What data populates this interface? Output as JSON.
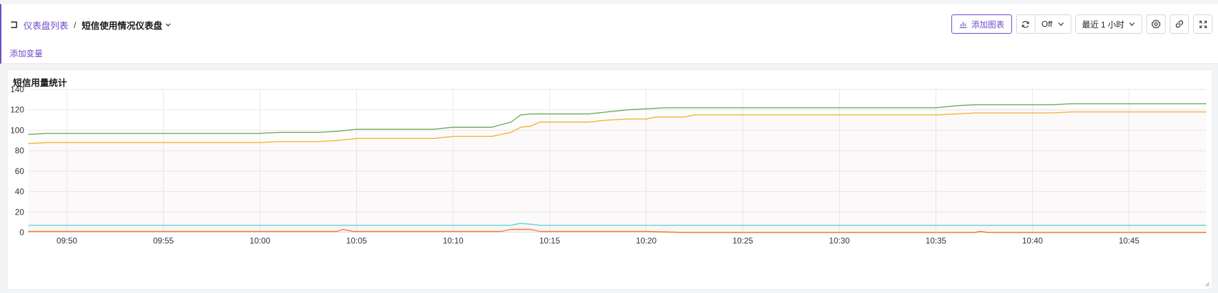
{
  "breadcrumb": {
    "parent": "仪表盘列表",
    "separator": "/",
    "current": "短信使用情况仪表盘"
  },
  "add_variable": "添加变量",
  "toolbar": {
    "add_chart": "添加图表",
    "refresh_interval": "Off",
    "time_range": "最近 1 小时"
  },
  "icons": [
    "back-icon",
    "chevron-down-icon",
    "chart-add-icon",
    "refresh-icon",
    "settings-icon",
    "link-icon",
    "fullscreen-icon"
  ],
  "colors": {
    "accent": "#6e4ac8",
    "series_green": "#6aaa5c",
    "series_yellow": "#f0b432",
    "series_cyan": "#5fd4d8",
    "series_orange": "#f07a30"
  },
  "chart_data": {
    "type": "line",
    "title": "短信用量统计",
    "x_ticks": [
      "09:50",
      "09:55",
      "10:00",
      "10:05",
      "10:10",
      "10:15",
      "10:20",
      "10:25",
      "10:30",
      "10:35",
      "10:40",
      "10:45"
    ],
    "xlim": [
      "09:48",
      "10:49"
    ],
    "ylim": [
      0,
      140
    ],
    "y_ticks": [
      0,
      20,
      40,
      60,
      80,
      100,
      120,
      140
    ],
    "grid": true,
    "area_fill": true,
    "series": [
      {
        "color": "#6aaa5c",
        "points": [
          [
            "09:48",
            96
          ],
          [
            "09:49",
            97
          ],
          [
            "10:00",
            97
          ],
          [
            "10:01",
            98
          ],
          [
            "10:03",
            98
          ],
          [
            "10:04",
            99
          ],
          [
            "10:05",
            101
          ],
          [
            "10:09",
            101
          ],
          [
            "10:10",
            103
          ],
          [
            "10:12",
            103
          ],
          [
            "10:13",
            108
          ],
          [
            "10:13.5",
            115
          ],
          [
            "10:14",
            116
          ],
          [
            "10:17",
            116
          ],
          [
            "10:18",
            118
          ],
          [
            "10:19",
            120
          ],
          [
            "10:20",
            121
          ],
          [
            "10:21",
            122
          ],
          [
            "10:24",
            122
          ],
          [
            "10:35",
            122
          ],
          [
            "10:36",
            124
          ],
          [
            "10:37",
            125
          ],
          [
            "10:41",
            125
          ],
          [
            "10:42",
            126
          ],
          [
            "10:49",
            126
          ]
        ]
      },
      {
        "color": "#f0b432",
        "points": [
          [
            "09:48",
            87
          ],
          [
            "09:49",
            88
          ],
          [
            "10:00",
            88
          ],
          [
            "10:01",
            89
          ],
          [
            "10:03",
            89
          ],
          [
            "10:04",
            90
          ],
          [
            "10:05",
            92
          ],
          [
            "10:09",
            92
          ],
          [
            "10:10",
            94
          ],
          [
            "10:12",
            94
          ],
          [
            "10:13",
            98
          ],
          [
            "10:13.5",
            103
          ],
          [
            "10:14",
            104
          ],
          [
            "10:14.5",
            108
          ],
          [
            "10:17",
            108
          ],
          [
            "10:18",
            110
          ],
          [
            "10:19",
            111
          ],
          [
            "10:20",
            111
          ],
          [
            "10:20.5",
            113
          ],
          [
            "10:22",
            113
          ],
          [
            "10:22.5",
            115
          ],
          [
            "10:35",
            115
          ],
          [
            "10:36",
            116
          ],
          [
            "10:37",
            117
          ],
          [
            "10:41",
            117
          ],
          [
            "10:42",
            118
          ],
          [
            "10:49",
            118
          ]
        ]
      },
      {
        "color": "#5fd4d8",
        "points": [
          [
            "09:48",
            7
          ],
          [
            "10:13",
            7
          ],
          [
            "10:13.5",
            9
          ],
          [
            "10:14",
            8
          ],
          [
            "10:14.5",
            7
          ],
          [
            "10:49",
            7
          ]
        ]
      },
      {
        "color": "#f07a30",
        "points": [
          [
            "09:48",
            1
          ],
          [
            "10:04",
            1
          ],
          [
            "10:04.3",
            3
          ],
          [
            "10:04.8",
            1
          ],
          [
            "10:12.5",
            1
          ],
          [
            "10:13",
            3
          ],
          [
            "10:14",
            3
          ],
          [
            "10:14.5",
            1
          ],
          [
            "10:20",
            1
          ],
          [
            "10:22",
            0
          ],
          [
            "10:37",
            0
          ],
          [
            "10:37.3",
            1
          ],
          [
            "10:37.7",
            0
          ],
          [
            "10:49",
            0
          ]
        ]
      }
    ]
  }
}
